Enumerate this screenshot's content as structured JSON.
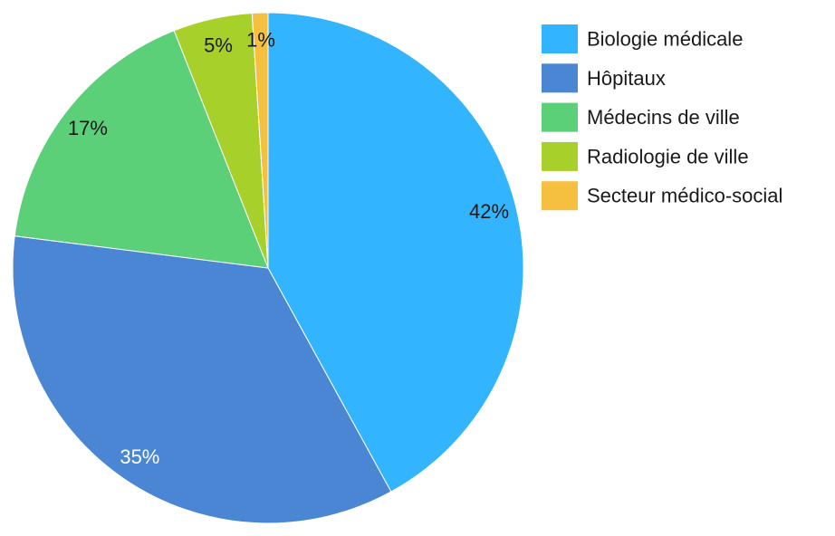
{
  "chart_data": {
    "type": "pie",
    "title": "",
    "start_angle": "top",
    "direction": "clockwise",
    "legend_position": "right",
    "slices": [
      {
        "label": "Biologie médicale",
        "value": 42,
        "display": "42%",
        "color": "#33B4FE",
        "label_color": "#1a1a1a"
      },
      {
        "label": "Hôpitaux",
        "value": 35,
        "display": "35%",
        "color": "#4A86D3",
        "label_color": "#ffffff"
      },
      {
        "label": "Médecins de ville",
        "value": 17,
        "display": "17%",
        "color": "#5CCF79",
        "label_color": "#1a1a1a"
      },
      {
        "label": "Radiologie de ville",
        "value": 5,
        "display": "5%",
        "color": "#A8D02B",
        "label_color": "#1a1a1a"
      },
      {
        "label": "Secteur médico-social",
        "value": 1,
        "display": "1%",
        "color": "#F5BF40",
        "label_color": "#1a1a1a"
      }
    ]
  }
}
